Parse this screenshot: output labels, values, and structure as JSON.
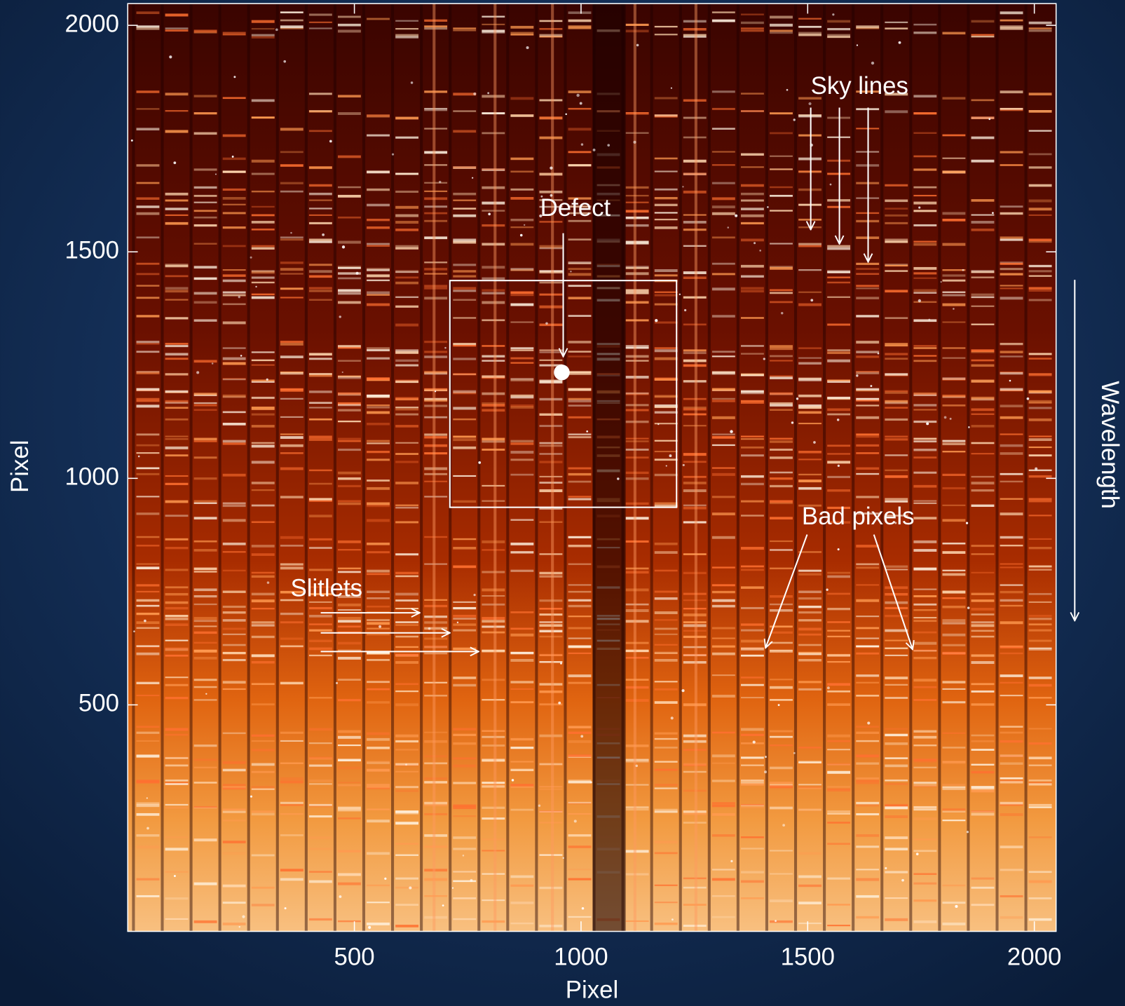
{
  "chart_data": {
    "type": "image",
    "xlabel": "Pixel",
    "ylabel": "Pixel",
    "xlim": [
      0,
      2048
    ],
    "ylim": [
      0,
      2048
    ],
    "xticks": [
      500,
      1000,
      1500,
      2000
    ],
    "yticks": [
      500,
      1000,
      1500,
      2000
    ],
    "annotations": [
      "Sky lines",
      "Defect",
      "Slitlets",
      "Bad pixels",
      "Wavelength"
    ]
  }
}
